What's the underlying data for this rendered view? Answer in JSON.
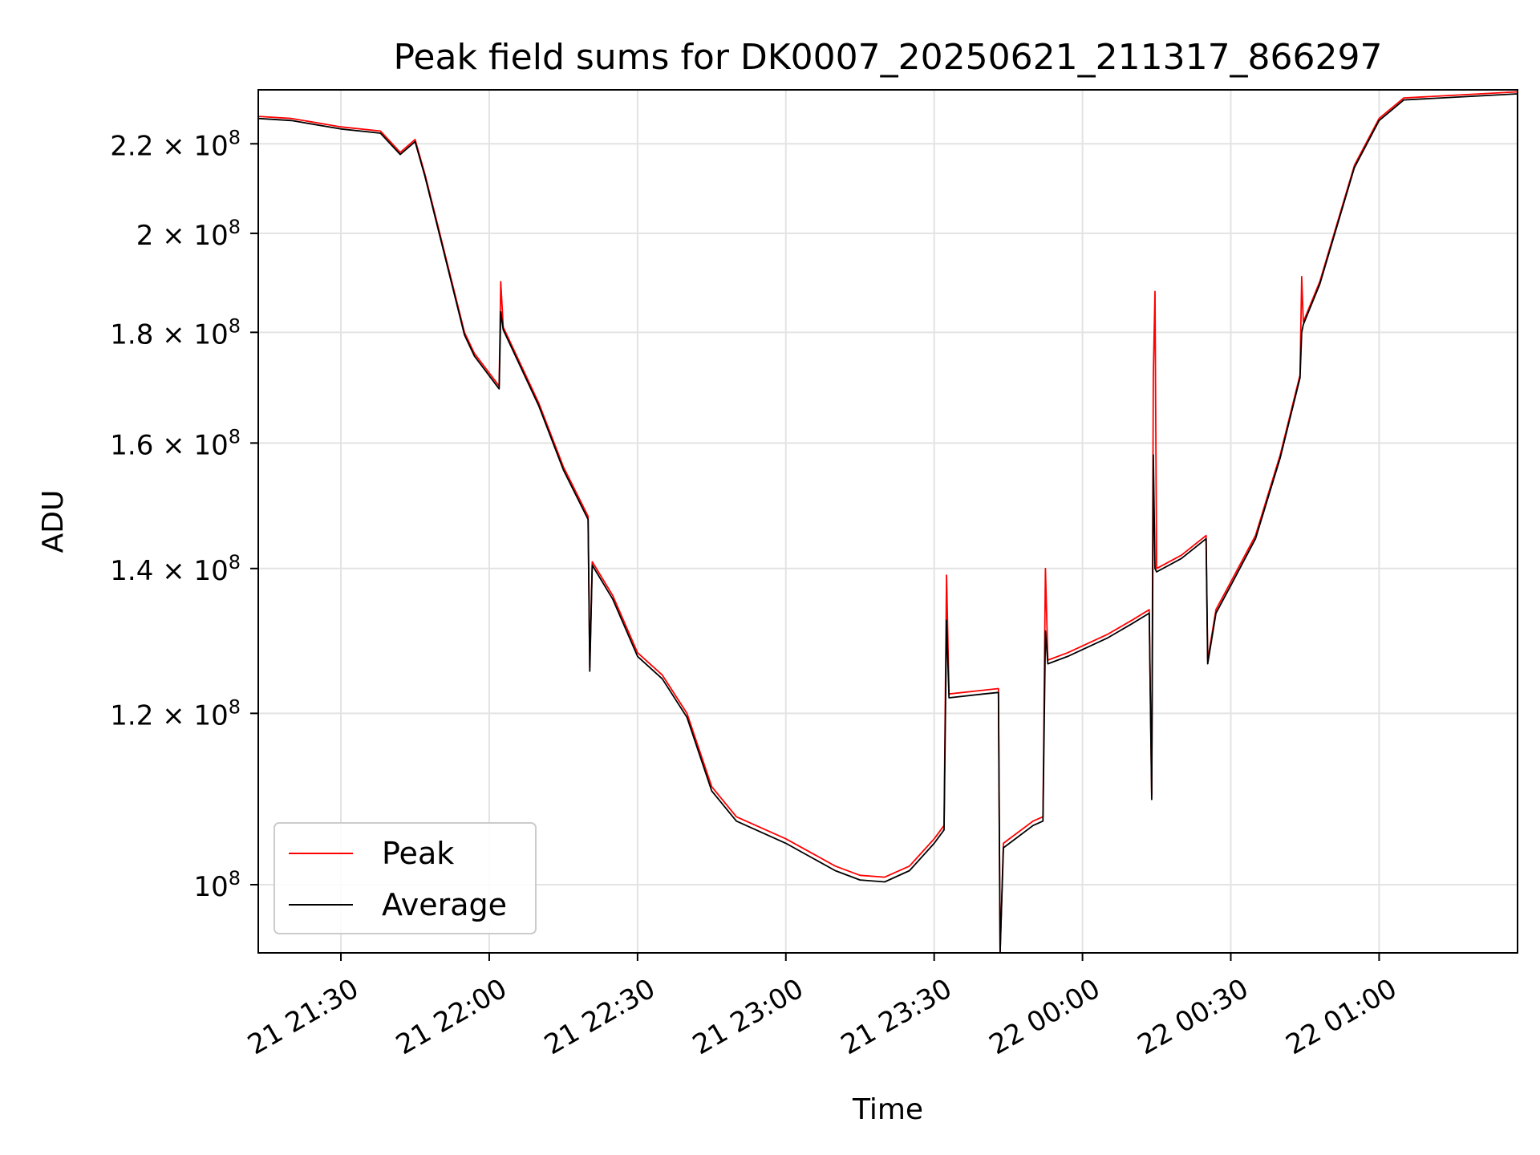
{
  "chart_data": {
    "type": "line",
    "title": "Peak field sums for DK0007_20250621_211317_866297",
    "xlabel": "Time",
    "ylabel": "ADU",
    "x_range": [
      "2025-06-21 21:13:17",
      "2025-06-22 01:28:00"
    ],
    "ylim": [
      93000000,
      233000000
    ],
    "y_scale": "log",
    "grid": true,
    "legend_position": "lower-left",
    "x_ticks": [
      {
        "value": "2025-06-21 21:30:00",
        "label": "21 21:30"
      },
      {
        "value": "2025-06-21 22:00:00",
        "label": "21 22:00"
      },
      {
        "value": "2025-06-21 22:30:00",
        "label": "21 22:30"
      },
      {
        "value": "2025-06-21 23:00:00",
        "label": "21 23:00"
      },
      {
        "value": "2025-06-21 23:30:00",
        "label": "21 23:30"
      },
      {
        "value": "2025-06-22 00:00:00",
        "label": "22 00:00"
      },
      {
        "value": "2025-06-22 00:30:00",
        "label": "22 00:30"
      },
      {
        "value": "2025-06-22 01:00:00",
        "label": "22 01:00"
      }
    ],
    "y_ticks": [
      {
        "value": 100000000,
        "mantissa": "",
        "power": "10",
        "exp": "8"
      },
      {
        "value": 120000000,
        "mantissa": "1.2 × ",
        "power": "10",
        "exp": "8"
      },
      {
        "value": 140000000,
        "mantissa": "1.4 × ",
        "power": "10",
        "exp": "8"
      },
      {
        "value": 160000000,
        "mantissa": "1.6 × ",
        "power": "10",
        "exp": "8"
      },
      {
        "value": 180000000,
        "mantissa": "1.8 × ",
        "power": "10",
        "exp": "8"
      },
      {
        "value": 200000000,
        "mantissa": "2 × ",
        "power": "10",
        "exp": "8"
      },
      {
        "value": 220000000,
        "mantissa": "2.2 × ",
        "power": "10",
        "exp": "8"
      }
    ],
    "series": [
      {
        "name": "Peak",
        "color": "#ff0000",
        "points": [
          [
            "2025-06-21 21:13:17",
            226500000
          ],
          [
            "2025-06-21 21:20:00",
            226000000
          ],
          [
            "2025-06-21 21:30:00",
            224000000
          ],
          [
            "2025-06-21 21:38:00",
            223000000
          ],
          [
            "2025-06-21 21:42:00",
            218000000
          ],
          [
            "2025-06-21 21:45:00",
            221000000
          ],
          [
            "2025-06-21 21:47:00",
            213000000
          ],
          [
            "2025-06-21 21:50:00",
            200000000
          ],
          [
            "2025-06-21 21:55:00",
            180000000
          ],
          [
            "2025-06-21 21:57:00",
            176000000
          ],
          [
            "2025-06-21 22:02:00",
            170000000
          ],
          [
            "2025-06-21 22:02:20",
            190000000
          ],
          [
            "2025-06-21 22:02:50",
            181000000
          ],
          [
            "2025-06-21 22:10:00",
            167000000
          ],
          [
            "2025-06-21 22:15:00",
            156000000
          ],
          [
            "2025-06-21 22:20:00",
            148000000
          ],
          [
            "2025-06-21 22:20:20",
            126000000
          ],
          [
            "2025-06-21 22:20:50",
            141000000
          ],
          [
            "2025-06-21 22:25:00",
            136000000
          ],
          [
            "2025-06-21 22:30:00",
            128000000
          ],
          [
            "2025-06-21 22:35:00",
            125000000
          ],
          [
            "2025-06-21 22:40:00",
            120000000
          ],
          [
            "2025-06-21 22:45:00",
            111000000
          ],
          [
            "2025-06-21 22:50:00",
            107500000
          ],
          [
            "2025-06-21 23:00:00",
            105000000
          ],
          [
            "2025-06-21 23:10:00",
            102000000
          ],
          [
            "2025-06-21 23:15:00",
            101000000
          ],
          [
            "2025-06-21 23:20:00",
            100800000
          ],
          [
            "2025-06-21 23:25:00",
            102000000
          ],
          [
            "2025-06-21 23:30:00",
            105000000
          ],
          [
            "2025-06-21 23:32:00",
            106500000
          ],
          [
            "2025-06-21 23:32:30",
            139000000
          ],
          [
            "2025-06-21 23:33:00",
            122500000
          ],
          [
            "2025-06-21 23:40:00",
            123000000
          ],
          [
            "2025-06-21 23:43:00",
            123200000
          ],
          [
            "2025-06-21 23:43:20",
            93000000
          ],
          [
            "2025-06-21 23:44:00",
            104500000
          ],
          [
            "2025-06-21 23:50:00",
            107000000
          ],
          [
            "2025-06-21 23:52:00",
            107500000
          ],
          [
            "2025-06-21 23:52:30",
            140000000
          ],
          [
            "2025-06-21 23:53:00",
            127000000
          ],
          [
            "2025-06-21 23:57:00",
            128000000
          ],
          [
            "2025-06-22 00:05:00",
            130500000
          ],
          [
            "2025-06-22 00:10:00",
            132500000
          ],
          [
            "2025-06-22 00:13:30",
            134000000
          ],
          [
            "2025-06-22 00:14:00",
            110000000
          ],
          [
            "2025-06-22 00:14:20",
            172000000
          ],
          [
            "2025-06-22 00:14:40",
            188000000
          ],
          [
            "2025-06-22 00:15:00",
            140000000
          ],
          [
            "2025-06-22 00:20:00",
            142000000
          ],
          [
            "2025-06-22 00:25:00",
            145000000
          ],
          [
            "2025-06-22 00:25:20",
            127000000
          ],
          [
            "2025-06-22 00:27:00",
            134000000
          ],
          [
            "2025-06-22 00:30:00",
            138000000
          ],
          [
            "2025-06-22 00:35:00",
            145000000
          ],
          [
            "2025-06-22 00:40:00",
            158000000
          ],
          [
            "2025-06-22 00:44:00",
            172000000
          ],
          [
            "2025-06-22 00:44:20",
            191000000
          ],
          [
            "2025-06-22 00:44:40",
            182000000
          ],
          [
            "2025-06-22 00:48:00",
            190000000
          ],
          [
            "2025-06-22 00:55:00",
            215000000
          ],
          [
            "2025-06-22 01:00:00",
            226000000
          ],
          [
            "2025-06-22 01:05:00",
            231000000
          ],
          [
            "2025-06-22 01:28:00",
            232500000
          ]
        ]
      },
      {
        "name": "Average",
        "color": "#000000",
        "points": [
          [
            "2025-06-21 21:13:17",
            226000000
          ],
          [
            "2025-06-21 21:20:00",
            225500000
          ],
          [
            "2025-06-21 21:30:00",
            223500000
          ],
          [
            "2025-06-21 21:38:00",
            222500000
          ],
          [
            "2025-06-21 21:42:00",
            217500000
          ],
          [
            "2025-06-21 21:45:00",
            220500000
          ],
          [
            "2025-06-21 21:47:00",
            212500000
          ],
          [
            "2025-06-21 21:50:00",
            199500000
          ],
          [
            "2025-06-21 21:55:00",
            179500000
          ],
          [
            "2025-06-21 21:57:00",
            175500000
          ],
          [
            "2025-06-21 22:02:00",
            169500000
          ],
          [
            "2025-06-21 22:02:20",
            184000000
          ],
          [
            "2025-06-21 22:02:50",
            180500000
          ],
          [
            "2025-06-21 22:10:00",
            166500000
          ],
          [
            "2025-06-21 22:15:00",
            155500000
          ],
          [
            "2025-06-21 22:20:00",
            147500000
          ],
          [
            "2025-06-21 22:20:20",
            125500000
          ],
          [
            "2025-06-21 22:20:50",
            140500000
          ],
          [
            "2025-06-21 22:25:00",
            135500000
          ],
          [
            "2025-06-21 22:30:00",
            127500000
          ],
          [
            "2025-06-21 22:35:00",
            124500000
          ],
          [
            "2025-06-21 22:40:00",
            119500000
          ],
          [
            "2025-06-21 22:45:00",
            110500000
          ],
          [
            "2025-06-21 22:50:00",
            107000000
          ],
          [
            "2025-06-21 23:00:00",
            104500000
          ],
          [
            "2025-06-21 23:10:00",
            101500000
          ],
          [
            "2025-06-21 23:15:00",
            100500000
          ],
          [
            "2025-06-21 23:20:00",
            100300000
          ],
          [
            "2025-06-21 23:25:00",
            101500000
          ],
          [
            "2025-06-21 23:30:00",
            104500000
          ],
          [
            "2025-06-21 23:32:00",
            106000000
          ],
          [
            "2025-06-21 23:32:30",
            132500000
          ],
          [
            "2025-06-21 23:33:00",
            122000000
          ],
          [
            "2025-06-21 23:40:00",
            122500000
          ],
          [
            "2025-06-21 23:43:00",
            122700000
          ],
          [
            "2025-06-21 23:43:20",
            93000000
          ],
          [
            "2025-06-21 23:44:00",
            104000000
          ],
          [
            "2025-06-21 23:50:00",
            106500000
          ],
          [
            "2025-06-21 23:52:00",
            107000000
          ],
          [
            "2025-06-21 23:52:30",
            131000000
          ],
          [
            "2025-06-21 23:53:00",
            126500000
          ],
          [
            "2025-06-21 23:57:00",
            127500000
          ],
          [
            "2025-06-22 00:05:00",
            130000000
          ],
          [
            "2025-06-22 00:10:00",
            132000000
          ],
          [
            "2025-06-22 00:13:30",
            133500000
          ],
          [
            "2025-06-22 00:14:00",
            109500000
          ],
          [
            "2025-06-22 00:14:20",
            158000000
          ],
          [
            "2025-06-22 00:14:40",
            140000000
          ],
          [
            "2025-06-22 00:15:00",
            139500000
          ],
          [
            "2025-06-22 00:20:00",
            141500000
          ],
          [
            "2025-06-22 00:25:00",
            144500000
          ],
          [
            "2025-06-22 00:25:20",
            126500000
          ],
          [
            "2025-06-22 00:27:00",
            133500000
          ],
          [
            "2025-06-22 00:30:00",
            137500000
          ],
          [
            "2025-06-22 00:35:00",
            144500000
          ],
          [
            "2025-06-22 00:40:00",
            157500000
          ],
          [
            "2025-06-22 00:44:00",
            171500000
          ],
          [
            "2025-06-22 00:44:20",
            180000000
          ],
          [
            "2025-06-22 00:44:40",
            181500000
          ],
          [
            "2025-06-22 00:48:00",
            189500000
          ],
          [
            "2025-06-22 00:55:00",
            214500000
          ],
          [
            "2025-06-22 01:00:00",
            225500000
          ],
          [
            "2025-06-22 01:05:00",
            230500000
          ],
          [
            "2025-06-22 01:28:00",
            232000000
          ]
        ]
      }
    ]
  }
}
